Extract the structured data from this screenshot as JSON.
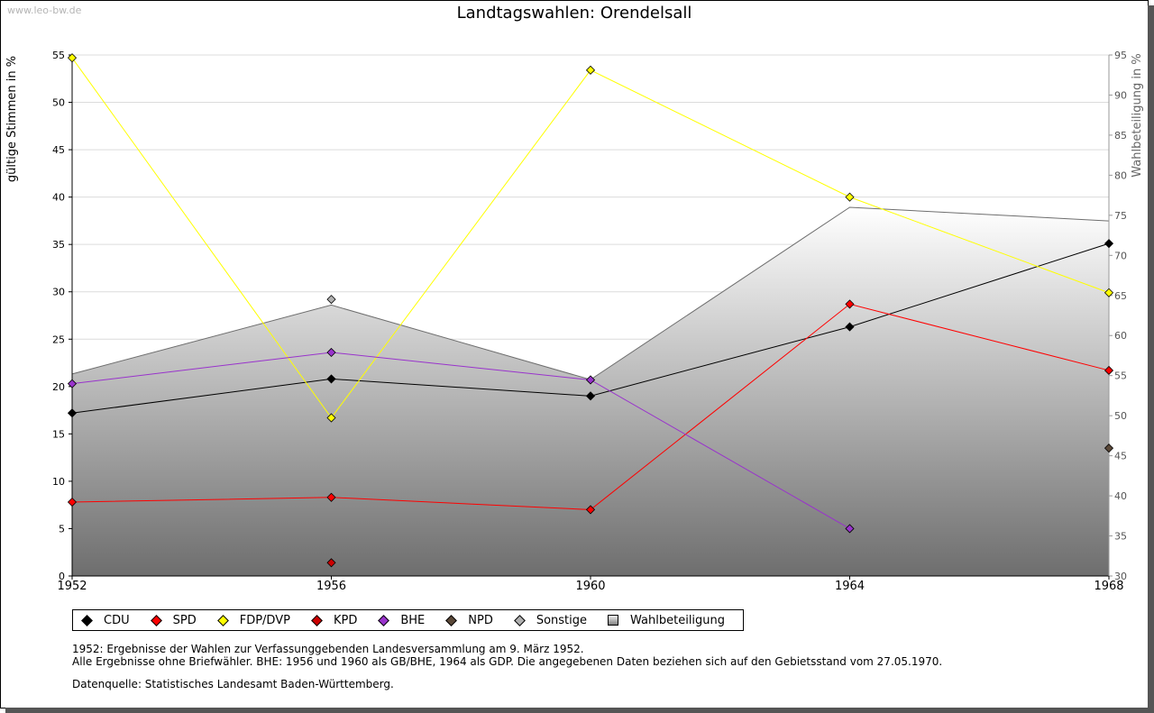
{
  "watermark": "www.leo-bw.de",
  "chart_data": {
    "type": "line",
    "title": "Landtagswahlen: Orendelsall",
    "ylabel": "gültige Stimmen in %",
    "y2label": "Wahlbeteiligung in %",
    "x": [
      1952,
      1956,
      1960,
      1964,
      1968
    ],
    "x_tick_labels": [
      "1952",
      "1956",
      "1960",
      "1964",
      "1968"
    ],
    "ylim": [
      0,
      55
    ],
    "y_ticks": [
      0,
      5,
      10,
      15,
      20,
      25,
      30,
      35,
      40,
      45,
      50,
      55
    ],
    "y2lim": [
      30,
      95
    ],
    "y2_ticks": [
      30,
      35,
      40,
      45,
      50,
      55,
      60,
      65,
      70,
      75,
      80,
      85,
      90,
      95
    ],
    "grid": true,
    "series": [
      {
        "name": "CDU",
        "color": "#000000",
        "values": [
          17.2,
          20.8,
          19.0,
          26.3,
          35.1
        ]
      },
      {
        "name": "SPD",
        "color": "#ff0000",
        "values": [
          7.8,
          8.3,
          7.0,
          28.7,
          21.7
        ]
      },
      {
        "name": "FDP/DVP",
        "color": "#ffff00",
        "values": [
          54.7,
          16.7,
          53.4,
          40.0,
          29.9
        ]
      },
      {
        "name": "KPD",
        "color": "#cc0000",
        "values": [
          null,
          1.4,
          null,
          null,
          null
        ]
      },
      {
        "name": "BHE",
        "color": "#9933cc",
        "values": [
          20.3,
          23.6,
          20.7,
          5.0,
          null
        ]
      },
      {
        "name": "NPD",
        "color": "#5a4838",
        "values": [
          null,
          null,
          null,
          null,
          13.5
        ]
      },
      {
        "name": "Sonstige",
        "color": "#b0b0b0",
        "values": [
          null,
          29.2,
          null,
          null,
          null
        ]
      }
    ],
    "area": {
      "name": "Wahlbeteiligung",
      "axis": "y2",
      "values": [
        55.2,
        63.8,
        54.5,
        76.0,
        74.3
      ]
    }
  },
  "legend": [
    {
      "label": "CDU",
      "color": "#000000",
      "kind": "diamond"
    },
    {
      "label": "SPD",
      "color": "#ff0000",
      "kind": "diamond"
    },
    {
      "label": "FDP/DVP",
      "color": "#ffff00",
      "kind": "diamond"
    },
    {
      "label": "KPD",
      "color": "#cc0000",
      "kind": "diamond"
    },
    {
      "label": "BHE",
      "color": "#9933cc",
      "kind": "diamond"
    },
    {
      "label": "NPD",
      "color": "#5a4838",
      "kind": "diamond"
    },
    {
      "label": "Sonstige",
      "color": "#b0b0b0",
      "kind": "diamond"
    },
    {
      "label": "Wahlbeteiligung",
      "color": "#c8c8c8",
      "kind": "square"
    }
  ],
  "notes": {
    "line1": "1952: Ergebnisse der Wahlen zur Verfassunggebenden Landesversammlung am 9. März 1952.",
    "line2": "Alle Ergebnisse ohne Briefwähler. BHE: 1956 und 1960 als GB/BHE, 1964 als GDP. Die angegebenen Daten beziehen sich auf den Gebietsstand vom 27.05.1970.",
    "source": "Datenquelle: Statistisches Landesamt Baden-Württemberg."
  }
}
